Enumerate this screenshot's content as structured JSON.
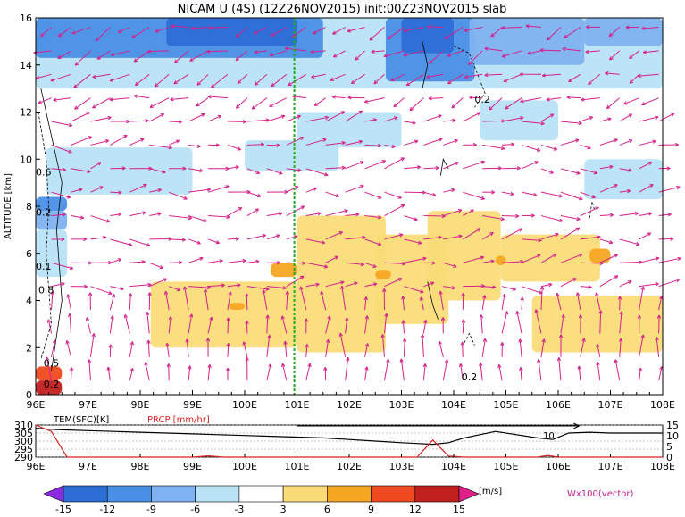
{
  "title": "NICAM U (4S) (12Z26NOV2015) init:00Z23NOV2015 slab",
  "chart_data": [
    {
      "type": "heatmap",
      "panel": "main",
      "ylabel": "ALTITUDE [km]",
      "x_ticks": [
        "96E",
        "97E",
        "98E",
        "99E",
        "100E",
        "101E",
        "102E",
        "103E",
        "104E",
        "105E",
        "106E",
        "107E",
        "108E"
      ],
      "y_ticks": [
        "0",
        "2",
        "4",
        "6",
        "8",
        "10",
        "12",
        "14",
        "16"
      ],
      "xlim": [
        96,
        108
      ],
      "ylim": [
        0,
        16
      ],
      "contour_labels": [
        "0.2",
        "0.6",
        "0.2",
        "0.1",
        "0.8",
        "0.5",
        "0.2",
        "0.2"
      ],
      "marker_longitude": 100.95,
      "cells": [
        {
          "x": [
            96.0,
            108.0
          ],
          "y": [
            13.0,
            16.0
          ],
          "v": -6
        },
        {
          "x": [
            96.0,
            101.5
          ],
          "y": [
            14.3,
            16.0
          ],
          "v": -12
        },
        {
          "x": [
            98.5,
            101.0
          ],
          "y": [
            14.8,
            16.0
          ],
          "v": -15
        },
        {
          "x": [
            102.7,
            104.4
          ],
          "y": [
            13.3,
            16.0
          ],
          "v": -12
        },
        {
          "x": [
            103.0,
            104.0
          ],
          "y": [
            14.5,
            16.0
          ],
          "v": -15
        },
        {
          "x": [
            104.3,
            106.5
          ],
          "y": [
            14.0,
            16.0
          ],
          "v": -9
        },
        {
          "x": [
            106.5,
            108.0
          ],
          "y": [
            14.8,
            16.0
          ],
          "v": -9
        },
        {
          "x": [
            96.2,
            99.0
          ],
          "y": [
            8.5,
            10.5
          ],
          "v": -3
        },
        {
          "x": [
            100.0,
            101.8
          ],
          "y": [
            9.5,
            10.8
          ],
          "v": -3
        },
        {
          "x": [
            101.0,
            103.0
          ],
          "y": [
            10.5,
            12.0
          ],
          "v": -3
        },
        {
          "x": [
            104.5,
            106.0
          ],
          "y": [
            10.8,
            12.5
          ],
          "v": -3
        },
        {
          "x": [
            106.5,
            108.0
          ],
          "y": [
            8.3,
            10.0
          ],
          "v": -3
        },
        {
          "x": [
            98.2,
            101.0
          ],
          "y": [
            2.0,
            4.8
          ],
          "v": 3
        },
        {
          "x": [
            101.0,
            102.7
          ],
          "y": [
            1.8,
            7.6
          ],
          "v": 3
        },
        {
          "x": [
            102.5,
            103.9
          ],
          "y": [
            3.0,
            6.8
          ],
          "v": 3
        },
        {
          "x": [
            103.5,
            104.9
          ],
          "y": [
            4.0,
            7.8
          ],
          "v": 3
        },
        {
          "x": [
            104.9,
            106.8
          ],
          "y": [
            4.8,
            6.8
          ],
          "v": 3
        },
        {
          "x": [
            105.5,
            108.0
          ],
          "y": [
            1.8,
            4.2
          ],
          "v": 3
        },
        {
          "x": [
            100.5,
            101.0
          ],
          "y": [
            5.0,
            5.6
          ],
          "v": 6
        },
        {
          "x": [
            102.5,
            102.8
          ],
          "y": [
            4.9,
            5.3
          ],
          "v": 6
        },
        {
          "x": [
            104.8,
            105.0
          ],
          "y": [
            5.5,
            5.9
          ],
          "v": 6
        },
        {
          "x": [
            106.6,
            107.0
          ],
          "y": [
            5.6,
            6.2
          ],
          "v": 6
        },
        {
          "x": [
            99.7,
            100.0
          ],
          "y": [
            3.6,
            3.9
          ],
          "v": 6
        },
        {
          "x": [
            96.0,
            96.6
          ],
          "y": [
            7.8,
            8.4
          ],
          "v": -12
        },
        {
          "x": [
            96.0,
            96.6
          ],
          "y": [
            7.0,
            7.8
          ],
          "v": -9
        },
        {
          "x": [
            96.0,
            96.6
          ],
          "y": [
            5.0,
            7.0
          ],
          "v": -6
        },
        {
          "x": [
            96.0,
            96.5
          ],
          "y": [
            0.6,
            1.2
          ],
          "v": 9
        },
        {
          "x": [
            96.0,
            96.5
          ],
          "y": [
            0.0,
            0.6
          ],
          "v": 12
        }
      ]
    },
    {
      "type": "line",
      "panel": "bottom",
      "label_left": "TEM(SFC)[K]",
      "label_right": "PRCP [mm/hr]",
      "left_ticks": [
        "310",
        "305",
        "300",
        "295",
        "290"
      ],
      "left_range": [
        290,
        310
      ],
      "right_ticks": [
        "15",
        "10",
        "5",
        "0"
      ],
      "right_range": [
        0,
        15
      ],
      "curve_label": "10",
      "series": [
        {
          "name": "TEM(SFC)[K]",
          "color": "#000000",
          "x": [
            96.0,
            96.2,
            96.5,
            97.0,
            97.5,
            98.0,
            98.5,
            99.0,
            99.5,
            100.0,
            100.5,
            101.0,
            101.5,
            102.0,
            102.5,
            103.0,
            103.3,
            103.6,
            103.9,
            104.2,
            104.5,
            104.8,
            105.2,
            105.6,
            105.9,
            106.2,
            106.6,
            107.0,
            107.5,
            108.0
          ],
          "y": [
            308.0,
            307.5,
            307.0,
            306.5,
            306.0,
            305.5,
            305.0,
            304.5,
            304.0,
            303.5,
            303.0,
            302.5,
            302.0,
            301.0,
            300.0,
            299.0,
            298.5,
            298.0,
            299.0,
            302.0,
            304.0,
            306.0,
            304.0,
            302.0,
            301.0,
            305.0,
            305.5,
            305.0,
            305.0,
            305.0
          ]
        },
        {
          "name": "PRCP [mm/hr]",
          "color": "#dd2222",
          "x": [
            96.0,
            96.3,
            96.6,
            97.0,
            99.0,
            99.3,
            99.6,
            100.0,
            103.3,
            103.6,
            103.9,
            104.2,
            105.6,
            105.8,
            106.0,
            108.0
          ],
          "y": [
            15.0,
            12.0,
            0.0,
            0.0,
            0.0,
            0.6,
            0.0,
            0.0,
            0.0,
            8.0,
            0.5,
            0.0,
            0.0,
            0.8,
            0.0,
            0.0
          ]
        }
      ]
    }
  ],
  "colorbar": {
    "labels": [
      "-15",
      "-12",
      "-9",
      "-6",
      "-3",
      "3",
      "6",
      "9",
      "12",
      "15"
    ],
    "colors": [
      "#8a2be2",
      "#2c6ed6",
      "#4a8fe6",
      "#7fb2f0",
      "#b9e3f5",
      "#ffffff",
      "#fadc78",
      "#f5a623",
      "#ef4a1f",
      "#c21f1f",
      "#e0208a"
    ],
    "units": "[m/s]",
    "vector_label": "Wx100(vector)"
  }
}
